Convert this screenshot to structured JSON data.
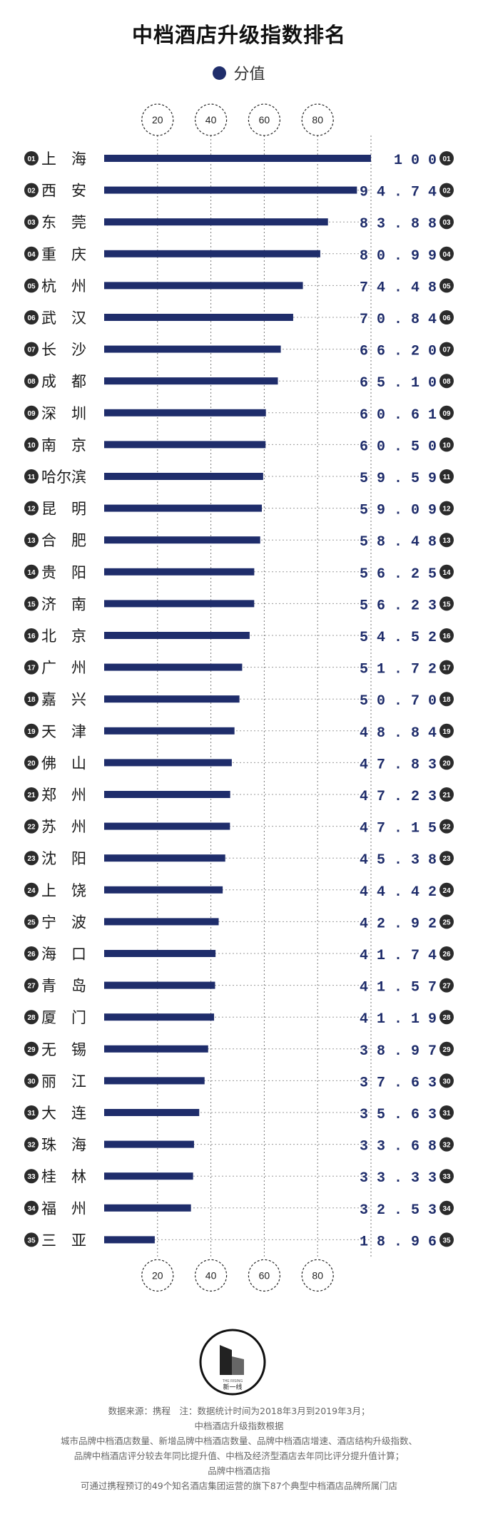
{
  "title": "中档酒店升级指数排名",
  "legend": {
    "label": "分值",
    "color": "#1f2d6b"
  },
  "colors": {
    "bar": "#1f2d6b",
    "rank_circle": "#2b2b2b",
    "value_text": "#1f2d6b",
    "grid": "#777777"
  },
  "chart_data": {
    "type": "bar",
    "orientation": "horizontal",
    "title": "中档酒店升级指数排名",
    "xlim": [
      0,
      100
    ],
    "xticks": [
      "20",
      "40",
      "60",
      "80"
    ],
    "grid": true,
    "legend_position": "top-center",
    "series": [
      {
        "name": "分值"
      }
    ],
    "rows": [
      {
        "rank": "01",
        "city": "上　海",
        "value": 100,
        "label": "1 0 0"
      },
      {
        "rank": "02",
        "city": "西　安",
        "value": 94.74,
        "label": "9 4 . 7 4"
      },
      {
        "rank": "03",
        "city": "东　莞",
        "value": 83.88,
        "label": "8 3 . 8 8"
      },
      {
        "rank": "04",
        "city": "重　庆",
        "value": 80.99,
        "label": "8 0 . 9 9"
      },
      {
        "rank": "05",
        "city": "杭　州",
        "value": 74.48,
        "label": "7 4 . 4 8"
      },
      {
        "rank": "06",
        "city": "武　汉",
        "value": 70.84,
        "label": "7 0 . 8 4"
      },
      {
        "rank": "07",
        "city": "长　沙",
        "value": 66.2,
        "label": "6 6 . 2 0"
      },
      {
        "rank": "08",
        "city": "成　都",
        "value": 65.1,
        "label": "6 5 . 1 0"
      },
      {
        "rank": "09",
        "city": "深　圳",
        "value": 60.61,
        "label": "6 0 . 6 1"
      },
      {
        "rank": "10",
        "city": "南　京",
        "value": 60.5,
        "label": "6 0 . 5 0"
      },
      {
        "rank": "11",
        "city": "哈尔滨",
        "value": 59.59,
        "label": "5 9 . 5 9"
      },
      {
        "rank": "12",
        "city": "昆　明",
        "value": 59.09,
        "label": "5 9 . 0 9"
      },
      {
        "rank": "13",
        "city": "合　肥",
        "value": 58.48,
        "label": "5 8 . 4 8"
      },
      {
        "rank": "14",
        "city": "贵　阳",
        "value": 56.25,
        "label": "5 6 . 2 5"
      },
      {
        "rank": "15",
        "city": "济　南",
        "value": 56.23,
        "label": "5 6 . 2 3"
      },
      {
        "rank": "16",
        "city": "北　京",
        "value": 54.52,
        "label": "5 4 . 5 2"
      },
      {
        "rank": "17",
        "city": "广　州",
        "value": 51.72,
        "label": "5 1 . 7 2"
      },
      {
        "rank": "18",
        "city": "嘉　兴",
        "value": 50.7,
        "label": "5 0 . 7 0"
      },
      {
        "rank": "19",
        "city": "天　津",
        "value": 48.84,
        "label": "4 8 . 8 4"
      },
      {
        "rank": "20",
        "city": "佛　山",
        "value": 47.83,
        "label": "4 7 . 8 3"
      },
      {
        "rank": "21",
        "city": "郑　州",
        "value": 47.23,
        "label": "4 7 . 2 3"
      },
      {
        "rank": "22",
        "city": "苏　州",
        "value": 47.15,
        "label": "4 7 . 1 5"
      },
      {
        "rank": "23",
        "city": "沈　阳",
        "value": 45.38,
        "label": "4 5 . 3 8"
      },
      {
        "rank": "24",
        "city": "上　饶",
        "value": 44.42,
        "label": "4 4 . 4 2"
      },
      {
        "rank": "25",
        "city": "宁　波",
        "value": 42.92,
        "label": "4 2 . 9 2"
      },
      {
        "rank": "26",
        "city": "海　口",
        "value": 41.74,
        "label": "4 1 . 7 4"
      },
      {
        "rank": "27",
        "city": "青　岛",
        "value": 41.57,
        "label": "4 1 . 5 7"
      },
      {
        "rank": "28",
        "city": "厦　门",
        "value": 41.19,
        "label": "4 1 . 1 9"
      },
      {
        "rank": "29",
        "city": "无　锡",
        "value": 38.97,
        "label": "3 8 . 9 7"
      },
      {
        "rank": "30",
        "city": "丽　江",
        "value": 37.63,
        "label": "3 7 . 6 3"
      },
      {
        "rank": "31",
        "city": "大　连",
        "value": 35.63,
        "label": "3 5 . 6 3"
      },
      {
        "rank": "32",
        "city": "珠　海",
        "value": 33.68,
        "label": "3 3 . 6 8"
      },
      {
        "rank": "33",
        "city": "桂　林",
        "value": 33.33,
        "label": "3 3 . 3 3"
      },
      {
        "rank": "34",
        "city": "福　州",
        "value": 32.53,
        "label": "3 2 . 5 3"
      },
      {
        "rank": "35",
        "city": "三　亚",
        "value": 18.96,
        "label": "1 8 . 9 6"
      }
    ]
  },
  "logo": {
    "caption": "新一线",
    "small_text": "THE RISING"
  },
  "footer": [
    "数据来源：携程　注：数据统计时间为2018年3月到2019年3月；",
    "中档酒店升级指数根据",
    "城市品牌中档酒店数量、新增品牌中档酒店数量、品牌中档酒店增速、酒店结构升级指数、",
    "品牌中档酒店评分较去年同比提升值、中档及经济型酒店去年同比评分提升值计算；",
    "品牌中档酒店指",
    "可通过携程预订的49个知名酒店集团运营的旗下87个典型中档酒店品牌所属门店"
  ]
}
